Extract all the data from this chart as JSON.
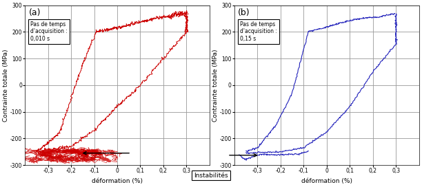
{
  "title_a": "(a)",
  "title_b": "(b)",
  "xlabel": "déformation (%)",
  "ylabel": "Contrainte totale (MPa)",
  "xlim": [
    -0.4,
    0.4
  ],
  "ylim": [
    -300,
    300
  ],
  "xticks": [
    -0.3,
    -0.2,
    -0.1,
    0.0,
    0.1,
    0.2,
    0.3
  ],
  "yticks": [
    -300,
    -200,
    -100,
    0,
    100,
    200,
    300
  ],
  "color_a": "#cc0000",
  "color_b": "#2222bb",
  "annotation_text": "Instabilités",
  "box_text_a": "Pas de temps\nd'acquisition :\n0,010 s",
  "box_text_b": "Pas de temps\nd'acquisition :\n0,15 s",
  "background_color": "#ffffff",
  "grid_color": "#999999"
}
